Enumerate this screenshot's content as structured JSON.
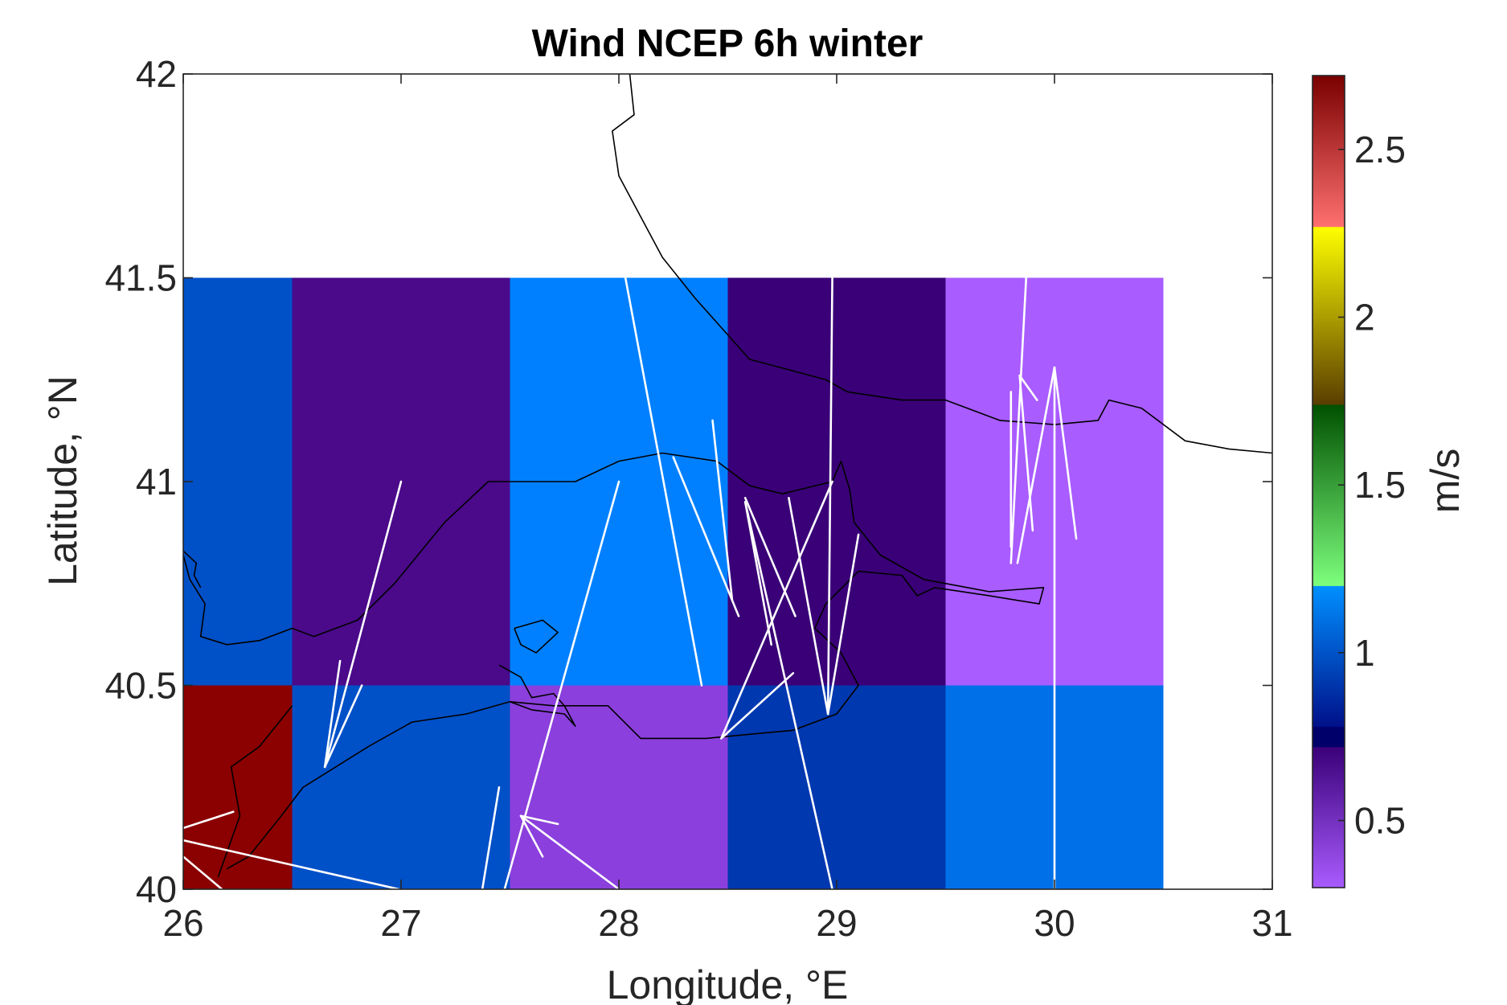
{
  "chart_data": {
    "type": "heatmap",
    "title": "Wind NCEP 6h winter",
    "xlabel": "Longitude, °E",
    "ylabel": "Latitude, °N",
    "xlim": [
      26,
      31
    ],
    "ylim": [
      40,
      42
    ],
    "xticks": [
      26,
      27,
      28,
      29,
      30,
      31
    ],
    "yticks": [
      40,
      40.5,
      41,
      41.5,
      42
    ],
    "xtick_labels": [
      "26",
      "27",
      "28",
      "29",
      "30",
      "31"
    ],
    "ytick_labels": [
      "40",
      "40.5",
      "41",
      "41.5",
      "42"
    ],
    "grid": false,
    "cells": [
      {
        "x0": 26.0,
        "x1": 26.5,
        "y0": 40.5,
        "y1": 41.5,
        "value": 1.0,
        "color": "#0050c8"
      },
      {
        "x0": 26.5,
        "x1": 27.5,
        "y0": 40.5,
        "y1": 41.5,
        "value": 0.6,
        "color": "#4a0a8a"
      },
      {
        "x0": 27.5,
        "x1": 28.5,
        "y0": 40.5,
        "y1": 41.5,
        "value": 1.1,
        "color": "#0080ff"
      },
      {
        "x0": 28.5,
        "x1": 29.5,
        "y0": 40.5,
        "y1": 41.5,
        "value": 0.62,
        "color": "#3a0078"
      },
      {
        "x0": 29.5,
        "x1": 30.5,
        "y0": 40.5,
        "y1": 41.5,
        "value": 0.35,
        "color": "#a95cff"
      },
      {
        "x0": 26.0,
        "x1": 26.5,
        "y0": 40.0,
        "y1": 40.5,
        "value": 2.7,
        "color": "#8b0000"
      },
      {
        "x0": 26.5,
        "x1": 27.5,
        "y0": 40.0,
        "y1": 40.5,
        "value": 1.0,
        "color": "#0050c8"
      },
      {
        "x0": 27.5,
        "x1": 28.5,
        "y0": 40.0,
        "y1": 40.5,
        "value": 0.45,
        "color": "#8b3fdc"
      },
      {
        "x0": 28.5,
        "x1": 29.5,
        "y0": 40.0,
        "y1": 40.5,
        "value": 0.95,
        "color": "#0038b0"
      },
      {
        "x0": 29.5,
        "x1": 30.5,
        "y0": 40.0,
        "y1": 40.5,
        "value": 1.1,
        "color": "#0070e8"
      }
    ],
    "colorbar": {
      "label": "m/s",
      "range": [
        0.3,
        2.72
      ],
      "ticks": [
        0.5,
        1,
        1.5,
        2,
        2.5
      ],
      "tick_labels": [
        "0.5",
        "1",
        "1.5",
        "2",
        "2.5"
      ],
      "bands": [
        {
          "from": 0.3,
          "to": 0.72,
          "c0": "#a95cff",
          "c1": "#3a0078"
        },
        {
          "from": 0.72,
          "to": 0.78,
          "c0": "#00006a",
          "c1": "#00006a"
        },
        {
          "from": 0.78,
          "to": 1.2,
          "c0": "#00108a",
          "c1": "#0090ff"
        },
        {
          "from": 1.2,
          "to": 1.74,
          "c0": "#7dff7d",
          "c1": "#005000"
        },
        {
          "from": 1.74,
          "to": 2.27,
          "c0": "#5a3d00",
          "c1": "#ffff00"
        },
        {
          "from": 2.27,
          "to": 2.72,
          "c0": "#ff7070",
          "c1": "#7a0000"
        }
      ]
    },
    "coastline_color": "#000000",
    "vector_color": "#ffffff",
    "coastline": [
      [
        [
          28.05,
          42.0
        ],
        [
          28.07,
          41.9
        ],
        [
          27.97,
          41.86
        ],
        [
          28.0,
          41.75
        ],
        [
          28.1,
          41.65
        ],
        [
          28.2,
          41.55
        ],
        [
          28.35,
          41.45
        ],
        [
          28.6,
          41.3
        ],
        [
          28.95,
          41.25
        ],
        [
          29.05,
          41.22
        ],
        [
          29.3,
          41.2
        ],
        [
          29.5,
          41.2
        ],
        [
          29.75,
          41.15
        ],
        [
          30.0,
          41.14
        ],
        [
          30.2,
          41.15
        ],
        [
          30.25,
          41.2
        ],
        [
          30.4,
          41.18
        ],
        [
          30.6,
          41.1
        ],
        [
          30.8,
          41.08
        ],
        [
          31.0,
          41.07
        ]
      ],
      [
        [
          26.0,
          40.82
        ],
        [
          26.03,
          40.76
        ],
        [
          26.1,
          40.7
        ],
        [
          26.08,
          40.62
        ],
        [
          26.2,
          40.6
        ],
        [
          26.35,
          40.61
        ],
        [
          26.5,
          40.64
        ],
        [
          26.6,
          40.62
        ],
        [
          26.8,
          40.66
        ],
        [
          26.97,
          40.75
        ],
        [
          27.2,
          40.9
        ],
        [
          27.4,
          41.0
        ],
        [
          27.6,
          41.0
        ],
        [
          27.8,
          41.0
        ],
        [
          28.0,
          41.05
        ],
        [
          28.2,
          41.07
        ],
        [
          28.45,
          41.05
        ],
        [
          28.6,
          40.99
        ],
        [
          28.75,
          40.97
        ],
        [
          28.98,
          41.0
        ],
        [
          29.02,
          41.05
        ],
        [
          29.06,
          40.98
        ],
        [
          29.08,
          40.9
        ],
        [
          29.2,
          40.82
        ],
        [
          29.4,
          40.76
        ],
        [
          29.6,
          40.74
        ],
        [
          29.7,
          40.73
        ],
        [
          29.95,
          40.74
        ],
        [
          29.93,
          40.7
        ],
        [
          29.7,
          40.72
        ],
        [
          29.45,
          40.74
        ],
        [
          29.37,
          40.72
        ],
        [
          29.3,
          40.77
        ],
        [
          29.1,
          40.78
        ],
        [
          28.95,
          40.7
        ],
        [
          28.9,
          40.64
        ],
        [
          29.02,
          40.58
        ],
        [
          29.1,
          40.5
        ],
        [
          29.0,
          40.43
        ],
        [
          28.8,
          40.39
        ],
        [
          28.6,
          40.38
        ],
        [
          28.4,
          40.37
        ],
        [
          28.1,
          40.37
        ],
        [
          27.95,
          40.45
        ],
        [
          27.8,
          40.45
        ],
        [
          27.7,
          40.45
        ],
        [
          27.5,
          40.46
        ],
        [
          27.3,
          40.43
        ],
        [
          27.05,
          40.41
        ],
        [
          26.85,
          40.35
        ],
        [
          26.7,
          40.3
        ],
        [
          26.55,
          40.25
        ],
        [
          26.45,
          40.18
        ],
        [
          26.3,
          40.08
        ],
        [
          26.2,
          40.05
        ]
      ],
      [
        [
          26.5,
          40.45
        ],
        [
          26.35,
          40.35
        ],
        [
          26.22,
          40.3
        ],
        [
          26.26,
          40.18
        ],
        [
          26.16,
          40.03
        ]
      ],
      [
        [
          27.52,
          40.64
        ],
        [
          27.65,
          40.66
        ],
        [
          27.72,
          40.63
        ],
        [
          27.62,
          40.58
        ],
        [
          27.55,
          40.6
        ],
        [
          27.52,
          40.64
        ]
      ],
      [
        [
          27.45,
          40.55
        ],
        [
          27.55,
          40.52
        ],
        [
          27.6,
          40.47
        ],
        [
          27.7,
          40.48
        ],
        [
          27.75,
          40.45
        ],
        [
          27.8,
          40.4
        ],
        [
          27.75,
          40.43
        ],
        [
          27.6,
          40.44
        ],
        [
          27.5,
          40.46
        ]
      ],
      [
        [
          26.0,
          40.83
        ],
        [
          26.06,
          40.8
        ],
        [
          26.05,
          40.77
        ],
        [
          26.08,
          40.74
        ]
      ]
    ],
    "vectors": [
      [
        [
          26.65,
          40.3
        ],
        [
          27.0,
          41.0
        ]
      ],
      [
        [
          26.65,
          40.3
        ],
        [
          26.82,
          40.5
        ]
      ],
      [
        [
          26.65,
          40.3
        ],
        [
          26.72,
          40.56
        ]
      ],
      [
        [
          26.0,
          40.12
        ],
        [
          26.99,
          40.0
        ]
      ],
      [
        [
          26.0,
          40.15
        ],
        [
          26.23,
          40.19
        ]
      ],
      [
        [
          26.0,
          40.08
        ],
        [
          26.2,
          39.99
        ]
      ],
      [
        [
          27.37,
          39.99
        ],
        [
          27.45,
          40.25
        ]
      ],
      [
        [
          27.47,
          39.99
        ],
        [
          28.0,
          41.0
        ]
      ],
      [
        [
          27.55,
          40.18
        ],
        [
          28.0,
          40.0
        ]
      ],
      [
        [
          27.55,
          40.18
        ],
        [
          27.72,
          40.16
        ]
      ],
      [
        [
          27.55,
          40.18
        ],
        [
          27.65,
          40.08
        ]
      ],
      [
        [
          28.03,
          41.5
        ],
        [
          28.38,
          40.5
        ]
      ],
      [
        [
          28.25,
          41.06
        ],
        [
          28.55,
          40.67
        ]
      ],
      [
        [
          28.52,
          40.71
        ],
        [
          28.43,
          41.15
        ]
      ],
      [
        [
          28.58,
          40.95
        ],
        [
          28.98,
          40.0
        ]
      ],
      [
        [
          28.58,
          40.96
        ],
        [
          28.81,
          40.67
        ]
      ],
      [
        [
          28.58,
          40.95
        ],
        [
          28.7,
          40.6
        ]
      ],
      [
        [
          28.47,
          40.37
        ],
        [
          28.98,
          41.0
        ]
      ],
      [
        [
          28.47,
          40.37
        ],
        [
          28.8,
          40.53
        ]
      ],
      [
        [
          28.98,
          41.5
        ],
        [
          28.96,
          40.43
        ]
      ],
      [
        [
          28.96,
          40.43
        ],
        [
          28.78,
          40.96
        ]
      ],
      [
        [
          28.96,
          40.43
        ],
        [
          29.1,
          40.87
        ]
      ],
      [
        [
          30.0,
          40.0
        ],
        [
          30.0,
          41.28
        ]
      ],
      [
        [
          30.0,
          41.28
        ],
        [
          29.83,
          40.8
        ]
      ],
      [
        [
          30.0,
          41.28
        ],
        [
          30.1,
          40.86
        ]
      ],
      [
        [
          29.8,
          40.8
        ],
        [
          29.87,
          41.5
        ]
      ],
      [
        [
          29.84,
          41.26
        ],
        [
          29.9,
          40.88
        ]
      ],
      [
        [
          29.84,
          41.26
        ],
        [
          29.92,
          41.2
        ]
      ],
      [
        [
          29.8,
          41.22
        ],
        [
          29.8,
          40.84
        ]
      ]
    ]
  }
}
